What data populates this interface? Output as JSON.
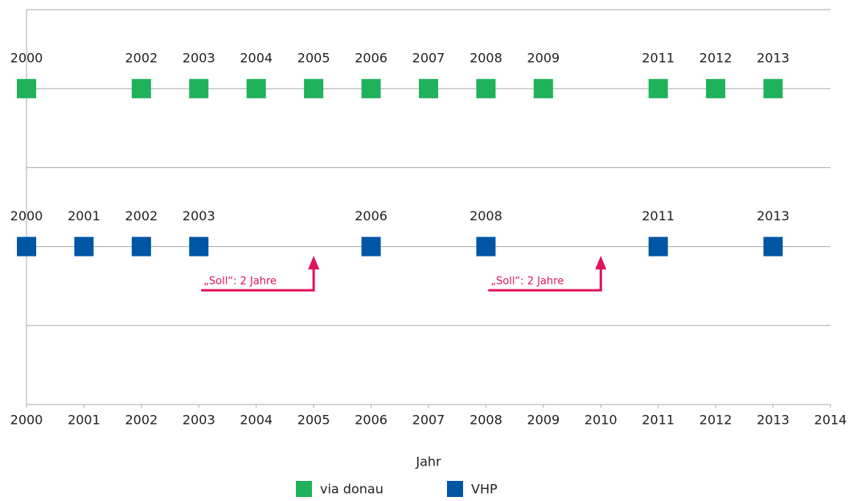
{
  "chart_data": {
    "type": "scatter",
    "xlabel": "Jahr",
    "xlim": [
      2000,
      2014
    ],
    "xticks": [
      2000,
      2001,
      2002,
      2003,
      2004,
      2005,
      2006,
      2007,
      2008,
      2009,
      2010,
      2011,
      2012,
      2013,
      2014
    ],
    "ylim": [
      0,
      5
    ],
    "yticks": [
      0,
      1,
      2,
      3,
      4,
      5
    ],
    "grid": true,
    "legend": "bottom",
    "series": [
      {
        "name": "via donau",
        "color": "#1fb25a",
        "x": [
          2000,
          2002,
          2003,
          2004,
          2005,
          2006,
          2007,
          2008,
          2009,
          2011,
          2012,
          2013
        ],
        "values": [
          4,
          4,
          4,
          4,
          4,
          4,
          4,
          4,
          4,
          4,
          4,
          4
        ]
      },
      {
        "name": "VHP",
        "color": "#0055a4",
        "x": [
          2000,
          2001,
          2002,
          2003,
          2006,
          2008,
          2011,
          2013
        ],
        "values": [
          2,
          2,
          2,
          2,
          2,
          2,
          2,
          2
        ]
      }
    ],
    "annotations": [
      {
        "text": "„Soll“: 2 Jahre",
        "x": 2005,
        "color": "#e0145a"
      },
      {
        "text": "„Soll“: 2 Jahre",
        "x": 2010,
        "color": "#e0145a"
      }
    ]
  }
}
